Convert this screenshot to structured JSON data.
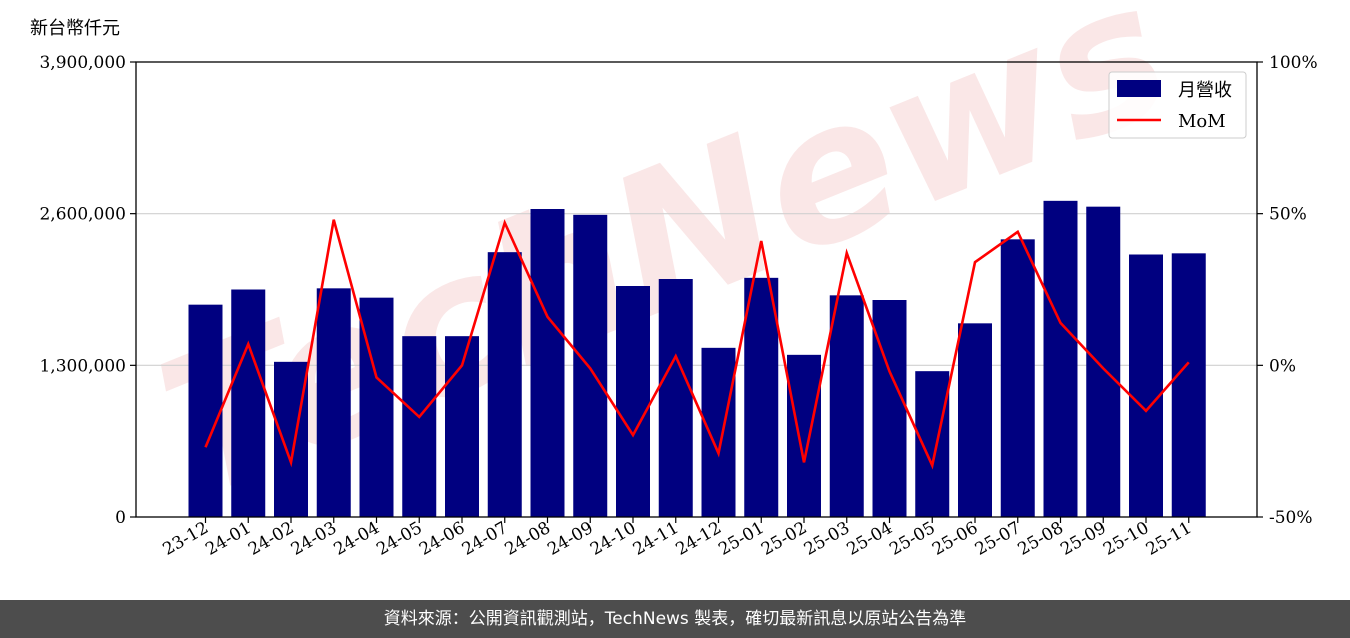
{
  "chart_data": {
    "type": "bar",
    "unit_label": "新台幣仟元",
    "categories": [
      "23-12",
      "24-01",
      "24-02",
      "24-03",
      "24-04",
      "24-05",
      "24-06",
      "24-07",
      "24-08",
      "24-09",
      "24-10",
      "24-11",
      "24-12",
      "25-01",
      "25-02",
      "25-03",
      "25-04",
      "25-05",
      "25-06",
      "25-07",
      "25-08",
      "25-09",
      "25-10",
      "25-11"
    ],
    "series": [
      {
        "name": "月營收",
        "axis": "left",
        "chart_type": "bar",
        "color": "#000080",
        "values": [
          1820000,
          1950000,
          1330000,
          1960000,
          1880000,
          1550000,
          1550000,
          2270000,
          2640000,
          2590000,
          1980000,
          2040000,
          1450000,
          2050000,
          1390000,
          1900000,
          1860000,
          1250000,
          1660000,
          2380000,
          2710000,
          2660000,
          2250000,
          2260000
        ]
      },
      {
        "name": "MoM",
        "axis": "right",
        "chart_type": "line",
        "color": "#ff0000",
        "values": [
          -27,
          7,
          -32,
          48,
          -4,
          -17,
          0,
          47,
          16,
          -1,
          -23,
          3,
          -29,
          41,
          -32,
          37,
          -2,
          -33,
          34,
          44,
          14,
          -1,
          -15,
          1
        ]
      }
    ],
    "y_left": {
      "min": 0,
      "max": 3900000,
      "ticks": [
        0,
        1300000,
        2600000,
        3900000
      ],
      "tick_labels": [
        "0",
        "1,300,000",
        "2,600,000",
        "3,900,000"
      ]
    },
    "y_right": {
      "min": -50,
      "max": 100,
      "ticks": [
        -50,
        0,
        50,
        100
      ],
      "tick_labels": [
        "-50%",
        "0%",
        "50%",
        "100%"
      ]
    },
    "grid": "horizontal",
    "legend_position": "top-right",
    "watermark": "TechNews"
  },
  "footer": {
    "text": "資料來源：公開資訊觀測站，TechNews 製表，確切最新訊息以原站公告為準"
  }
}
